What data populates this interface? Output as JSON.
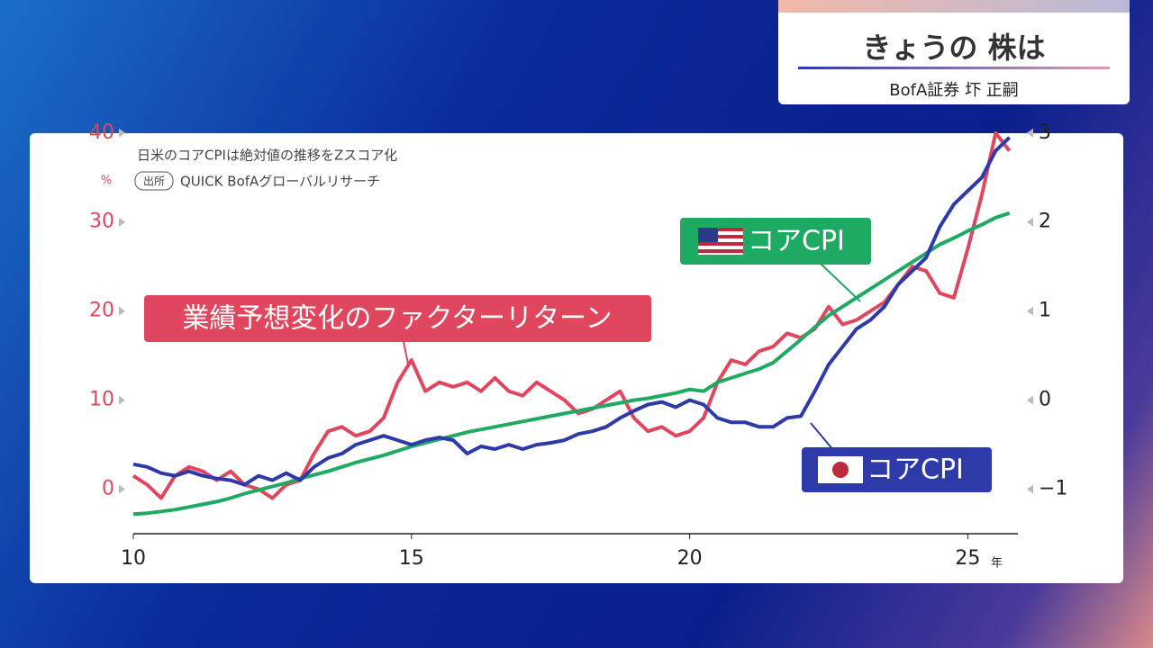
{
  "header": {
    "title": "きょうの 株は",
    "subtitle": "BofA証券 圷 正嗣"
  },
  "chart_data": {
    "type": "line",
    "note": "日米のコアCPIは絶対値の推移をZスコア化",
    "source_badge": "出所",
    "source": "QUICK BofAグローバルリサーチ",
    "y_unit": "%",
    "x_unit": "年",
    "x": [
      10,
      10.25,
      10.5,
      10.75,
      11,
      11.25,
      11.5,
      11.75,
      12,
      12.25,
      12.5,
      12.75,
      13,
      13.25,
      13.5,
      13.75,
      14,
      14.25,
      14.5,
      14.75,
      15,
      15.25,
      15.5,
      15.75,
      16,
      16.25,
      16.5,
      16.75,
      17,
      17.25,
      17.5,
      17.75,
      18,
      18.25,
      18.5,
      18.75,
      19,
      19.25,
      19.5,
      19.75,
      20,
      20.25,
      20.5,
      20.75,
      21,
      21.25,
      21.5,
      21.75,
      22,
      22.25,
      22.5,
      22.75,
      23,
      23.25,
      23.5,
      23.75,
      24,
      24.25,
      24.5,
      24.75,
      25,
      25.25,
      25.5,
      25.75
    ],
    "xlim": [
      10,
      25.9
    ],
    "xticks": [
      10,
      15,
      20,
      25
    ],
    "ylim": [
      -5,
      42
    ],
    "yticks": [
      0,
      10,
      20,
      30,
      40
    ],
    "y2lim": [
      -1.5,
      3.2
    ],
    "y2ticks": [
      {
        "value": -1,
        "label": "−1"
      },
      0,
      1,
      2,
      3
    ],
    "series": [
      {
        "name": "業績予想変化のファクターリターン",
        "color": "#e0475f",
        "axis": "y",
        "values": [
          1.5,
          0.5,
          -1,
          1.5,
          2.5,
          2,
          1,
          2,
          0.5,
          0,
          -1,
          0.5,
          1,
          4,
          6.5,
          7,
          6,
          6.5,
          8,
          12,
          14.5,
          11,
          12,
          11.5,
          12,
          11,
          12.5,
          11,
          10.5,
          12,
          11,
          10,
          8.5,
          9,
          10,
          11,
          8,
          6.5,
          7,
          6,
          6.5,
          8,
          12,
          14.5,
          14,
          15.5,
          16,
          17.5,
          17,
          18,
          20.5,
          18.5,
          19,
          20,
          21,
          23,
          25,
          24.5,
          22,
          21.5,
          27,
          33,
          40,
          38
        ]
      },
      {
        "name": "コアCPI",
        "color": "#2d3aa8",
        "axis": "y2",
        "values": [
          -0.72,
          -0.75,
          -0.82,
          -0.85,
          -0.8,
          -0.85,
          -0.88,
          -0.9,
          -0.95,
          -0.85,
          -0.9,
          -0.82,
          -0.9,
          -0.75,
          -0.65,
          -0.6,
          -0.5,
          -0.45,
          -0.4,
          -0.45,
          -0.5,
          -0.45,
          -0.42,
          -0.45,
          -0.6,
          -0.52,
          -0.55,
          -0.5,
          -0.55,
          -0.5,
          -0.48,
          -0.45,
          -0.38,
          -0.35,
          -0.3,
          -0.2,
          -0.12,
          -0.05,
          -0.02,
          -0.08,
          0,
          -0.05,
          -0.2,
          -0.25,
          -0.25,
          -0.3,
          -0.3,
          -0.2,
          -0.18,
          0.1,
          0.4,
          0.6,
          0.8,
          0.9,
          1.05,
          1.3,
          1.45,
          1.6,
          1.95,
          2.2,
          2.35,
          2.5,
          2.8,
          2.95
        ]
      },
      {
        "name": "コアCPI",
        "color": "#1faa63",
        "axis": "y2",
        "values": [
          -1.28,
          -1.27,
          -1.25,
          -1.23,
          -1.2,
          -1.17,
          -1.14,
          -1.1,
          -1.05,
          -1.01,
          -0.97,
          -0.93,
          -0.88,
          -0.84,
          -0.8,
          -0.75,
          -0.7,
          -0.66,
          -0.62,
          -0.57,
          -0.52,
          -0.48,
          -0.44,
          -0.4,
          -0.36,
          -0.33,
          -0.3,
          -0.27,
          -0.24,
          -0.21,
          -0.18,
          -0.15,
          -0.12,
          -0.09,
          -0.06,
          -0.03,
          0,
          0.02,
          0.05,
          0.08,
          0.12,
          0.1,
          0.2,
          0.25,
          0.3,
          0.35,
          0.42,
          0.55,
          0.68,
          0.82,
          0.95,
          1.05,
          1.15,
          1.25,
          1.35,
          1.45,
          1.55,
          1.65,
          1.75,
          1.82,
          1.9,
          1.97,
          2.05,
          2.1
        ]
      }
    ]
  }
}
